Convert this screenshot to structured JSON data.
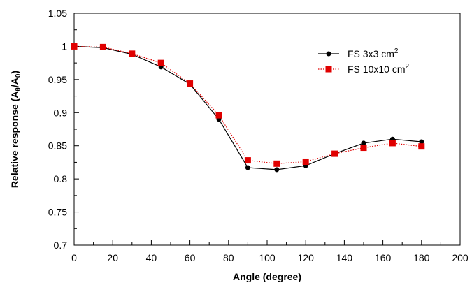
{
  "chart_data": {
    "type": "line",
    "x": [
      0,
      15,
      30,
      45,
      60,
      75,
      90,
      105,
      120,
      135,
      150,
      165,
      180
    ],
    "series": [
      {
        "name": "FS 3x3 cm",
        "name_sup": "2",
        "color": "#000000",
        "marker": "circle",
        "line_style": "solid",
        "values": [
          1.0,
          0.998,
          0.988,
          0.969,
          0.943,
          0.89,
          0.817,
          0.814,
          0.82,
          0.838,
          0.854,
          0.86,
          0.856
        ]
      },
      {
        "name": "FS 10x10 cm",
        "name_sup": "2",
        "color": "#e00000",
        "marker": "square",
        "line_style": "dotted",
        "values": [
          1.0,
          0.999,
          0.989,
          0.975,
          0.944,
          0.896,
          0.828,
          0.823,
          0.826,
          0.838,
          0.847,
          0.854,
          0.849
        ]
      }
    ],
    "xlabel": "Angle (degree)",
    "ylabel": {
      "prefix": "Relative response (A",
      "sub1": "θ",
      "mid": "/A",
      "sub2": "0",
      "suffix": ")"
    },
    "xlim": [
      0,
      200
    ],
    "ylim": [
      0.7,
      1.05
    ],
    "x_ticks": [
      "0",
      "20",
      "40",
      "60",
      "80",
      "100",
      "120",
      "140",
      "160",
      "180",
      "200"
    ],
    "y_ticks": [
      "0.7",
      "0.75",
      "0.8",
      "0.85",
      "0.9",
      "0.95",
      "1",
      "1.05"
    ],
    "grid": false,
    "legend_position": "top-right"
  }
}
